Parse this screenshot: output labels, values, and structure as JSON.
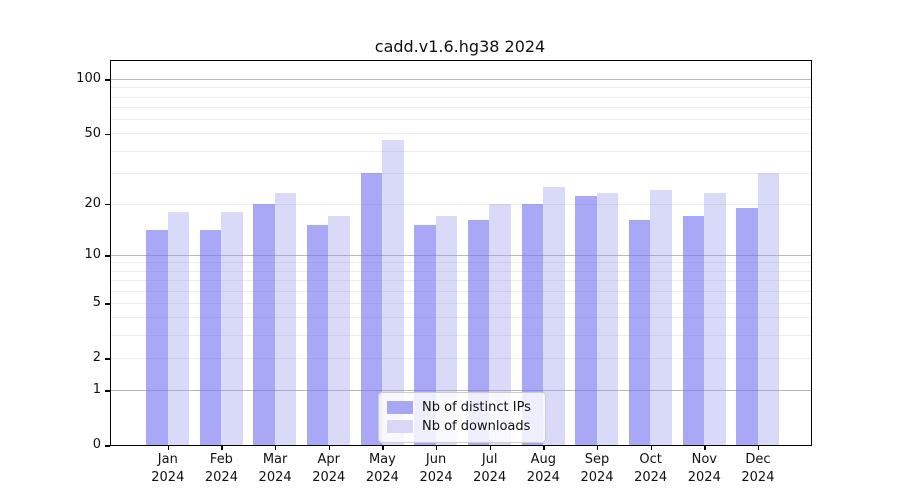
{
  "chart_data": {
    "type": "bar",
    "title": "cadd.v1.6.hg38 2024",
    "categories": [
      "Jan 2024",
      "Feb 2024",
      "Mar 2024",
      "Apr 2024",
      "May 2024",
      "Jun 2024",
      "Jul 2024",
      "Aug 2024",
      "Sep 2024",
      "Oct 2024",
      "Nov 2024",
      "Dec 2024"
    ],
    "series": [
      {
        "name": "Nb of distinct IPs",
        "values": [
          14,
          14,
          20,
          15,
          30,
          15,
          16,
          20,
          22,
          16,
          17,
          19
        ],
        "fill_color": "rgba(110,110,240,0.6)",
        "legend_color": "#a8a8f2"
      },
      {
        "name": "Nb of downloads",
        "values": [
          18,
          18,
          23,
          17,
          46,
          17,
          20,
          25,
          23,
          24,
          23,
          30
        ],
        "fill_color": "rgba(146,146,235,0.35)",
        "legend_color": "#d8d8f6"
      }
    ],
    "yscale": "log1p",
    "ylim": [
      0,
      126
    ],
    "ytick_values": [
      0,
      1,
      2,
      5,
      10,
      20,
      50,
      100
    ],
    "ytick_labels": [
      "0",
      "1",
      "2",
      "5",
      "10",
      "20",
      "50",
      "100"
    ],
    "major_grid_values": [
      1,
      10,
      100
    ],
    "minor_grid_values": [
      2,
      3,
      4,
      5,
      6,
      7,
      8,
      9,
      20,
      30,
      40,
      50,
      60,
      70,
      80,
      90
    ],
    "grid": true,
    "legend_position": "lower center",
    "xlabel": "",
    "ylabel": ""
  },
  "colors": {
    "background": "#ffffff",
    "axis": "#000000",
    "major_grid": "#b9b9b9",
    "minor_grid": "#ececec",
    "legend_border": "#cccccc",
    "text": "#111111"
  }
}
